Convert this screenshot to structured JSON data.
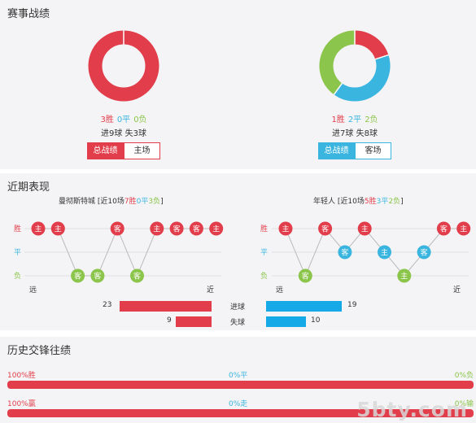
{
  "colors": {
    "win": "#e23d4a",
    "draw": "#3ab5df",
    "loss": "#8cc54b",
    "gray_line": "#bbbbbb"
  },
  "stats": {
    "title": "赛事战绩",
    "home": {
      "win": 3,
      "draw": 0,
      "loss": 0,
      "win_text": "3胜",
      "draw_text": "0平",
      "loss_text": "0负",
      "goals_for": "进9球",
      "goals_against": "失3球",
      "btn_total": "总战绩",
      "btn_venue": "主场",
      "accent": "#e23d4a"
    },
    "away": {
      "win": 1,
      "draw": 2,
      "loss": 2,
      "win_text": "1胜",
      "draw_text": "2平",
      "loss_text": "2负",
      "goals_for": "进7球",
      "goals_against": "失8球",
      "btn_total": "总战绩",
      "btn_venue": "客场",
      "accent": "#3ab5df"
    }
  },
  "recent": {
    "title": "近期表现",
    "row_labels": {
      "win": "胜",
      "draw": "平",
      "loss": "负"
    },
    "far": "远",
    "near": "近",
    "home_team": {
      "name": "曼彻斯特城",
      "summary_pre": "[近10场",
      "w": "7胜",
      "d": "0平",
      "l": "3负",
      "summary_post": "]",
      "results": [
        {
          "r": "W",
          "v": "主"
        },
        {
          "r": "W",
          "v": "主"
        },
        {
          "r": "L",
          "v": "客"
        },
        {
          "r": "L",
          "v": "客"
        },
        {
          "r": "W",
          "v": "客"
        },
        {
          "r": "L",
          "v": "客"
        },
        {
          "r": "W",
          "v": "主"
        },
        {
          "r": "W",
          "v": "客"
        },
        {
          "r": "W",
          "v": "客"
        },
        {
          "r": "W",
          "v": "主"
        }
      ]
    },
    "away_team": {
      "name": "年轻人",
      "summary_pre": "[近10场",
      "w": "5胜",
      "d": "3平",
      "l": "2负",
      "summary_post": "]",
      "results": [
        {
          "r": "W",
          "v": "主"
        },
        {
          "r": "L",
          "v": "客"
        },
        {
          "r": "W",
          "v": "客"
        },
        {
          "r": "D",
          "v": "客"
        },
        {
          "r": "W",
          "v": "主"
        },
        {
          "r": "D",
          "v": "主"
        },
        {
          "r": "L",
          "v": "主"
        },
        {
          "r": "D",
          "v": "客"
        },
        {
          "r": "W",
          "v": "客"
        },
        {
          "r": "W",
          "v": "主"
        }
      ]
    },
    "bars": {
      "scored_label": "进球",
      "conceded_label": "失球",
      "home_scored": 23,
      "home_conceded": 9,
      "away_scored": 19,
      "away_conceded": 10,
      "home_color": "#e23d4a",
      "away_color": "#15a9e8"
    }
  },
  "history": {
    "title": "历史交锋往绩",
    "row1": {
      "left": "100%胜",
      "mid": "0%平",
      "right": "0%负",
      "fill_pct": 100
    },
    "row2": {
      "left": "100%赢",
      "mid": "0%走",
      "right": "0%输",
      "fill_pct": 100
    }
  },
  "watermark": "5bty.com"
}
